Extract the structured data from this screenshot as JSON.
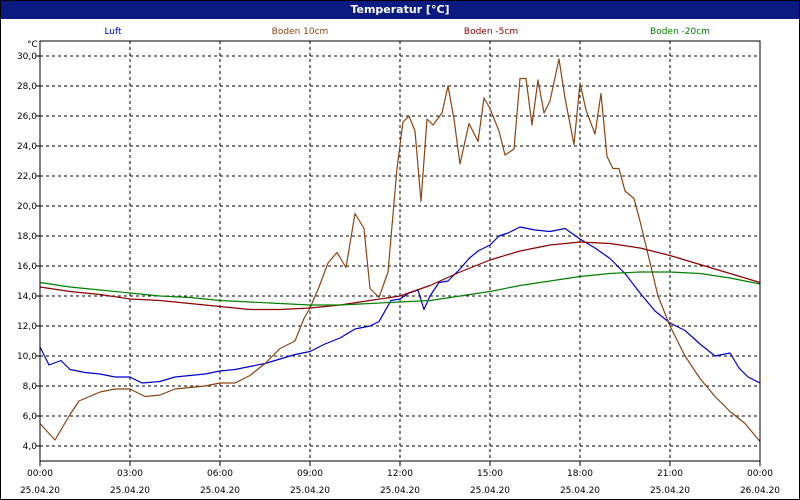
{
  "window": {
    "title": "Temperatur [°C]"
  },
  "chart_data": {
    "type": "line",
    "ylabel": "°C",
    "ylim": [
      3,
      31
    ],
    "xlim": [
      0,
      24
    ],
    "grid": true,
    "legend_position": "top",
    "y_ticks": [
      "4,0",
      "6,0",
      "8,0",
      "10,0",
      "12,0",
      "14,0",
      "16,0",
      "18,0",
      "20,0",
      "22,0",
      "24,0",
      "26,0",
      "28,0",
      "30,0"
    ],
    "x_ticks": [
      {
        "time": "00:00",
        "date": "25.04.20"
      },
      {
        "time": "03:00",
        "date": "25.04.20"
      },
      {
        "time": "06:00",
        "date": "25.04.20"
      },
      {
        "time": "09:00",
        "date": "25.04.20"
      },
      {
        "time": "12:00",
        "date": "25.04.20"
      },
      {
        "time": "15:00",
        "date": "25.04.20"
      },
      {
        "time": "18:00",
        "date": "25.04.20"
      },
      {
        "time": "21:00",
        "date": "25.04.20"
      },
      {
        "time": "00:00",
        "date": "26.04.20"
      }
    ],
    "series": [
      {
        "name": "Luft",
        "color": "#0000cc",
        "points": [
          [
            0,
            10.6
          ],
          [
            0.3,
            9.4
          ],
          [
            0.7,
            9.7
          ],
          [
            1.0,
            9.1
          ],
          [
            1.5,
            8.9
          ],
          [
            2.0,
            8.8
          ],
          [
            2.5,
            8.6
          ],
          [
            3.0,
            8.6
          ],
          [
            3.4,
            8.2
          ],
          [
            4.0,
            8.3
          ],
          [
            4.5,
            8.6
          ],
          [
            5.0,
            8.7
          ],
          [
            5.5,
            8.8
          ],
          [
            6.0,
            9.0
          ],
          [
            6.5,
            9.1
          ],
          [
            7.0,
            9.3
          ],
          [
            7.5,
            9.5
          ],
          [
            8.0,
            9.8
          ],
          [
            8.5,
            10.1
          ],
          [
            9.0,
            10.3
          ],
          [
            9.5,
            10.8
          ],
          [
            10.0,
            11.2
          ],
          [
            10.5,
            11.8
          ],
          [
            11.0,
            12.0
          ],
          [
            11.3,
            12.3
          ],
          [
            11.7,
            13.7
          ],
          [
            12.0,
            13.8
          ],
          [
            12.3,
            14.2
          ],
          [
            12.6,
            14.4
          ],
          [
            12.8,
            13.1
          ],
          [
            13.0,
            14.0
          ],
          [
            13.3,
            14.9
          ],
          [
            13.6,
            15.0
          ],
          [
            14.0,
            15.8
          ],
          [
            14.3,
            16.5
          ],
          [
            14.6,
            17.0
          ],
          [
            15.0,
            17.4
          ],
          [
            15.3,
            18.0
          ],
          [
            15.6,
            18.2
          ],
          [
            16.0,
            18.6
          ],
          [
            16.5,
            18.4
          ],
          [
            17.0,
            18.3
          ],
          [
            17.5,
            18.5
          ],
          [
            18.0,
            17.8
          ],
          [
            18.5,
            17.2
          ],
          [
            19.0,
            16.5
          ],
          [
            19.5,
            15.5
          ],
          [
            20.0,
            14.2
          ],
          [
            20.5,
            13.0
          ],
          [
            21.0,
            12.2
          ],
          [
            21.5,
            11.7
          ],
          [
            22.0,
            10.8
          ],
          [
            22.5,
            10.0
          ],
          [
            23.0,
            10.2
          ],
          [
            23.3,
            9.2
          ],
          [
            23.6,
            8.6
          ],
          [
            24.0,
            8.2
          ]
        ]
      },
      {
        "name": "Boden 10cm",
        "color": "#8b4513",
        "points": [
          [
            0,
            5.5
          ],
          [
            0.5,
            4.4
          ],
          [
            1.0,
            6.1
          ],
          [
            1.3,
            7.0
          ],
          [
            2.0,
            7.6
          ],
          [
            2.5,
            7.8
          ],
          [
            3.0,
            7.8
          ],
          [
            3.5,
            7.3
          ],
          [
            4.0,
            7.4
          ],
          [
            4.5,
            7.8
          ],
          [
            5.0,
            7.9
          ],
          [
            5.5,
            8.0
          ],
          [
            6.0,
            8.2
          ],
          [
            6.5,
            8.2
          ],
          [
            7.0,
            8.7
          ],
          [
            7.5,
            9.5
          ],
          [
            8.0,
            10.5
          ],
          [
            8.5,
            11.0
          ],
          [
            8.8,
            12.5
          ],
          [
            9.0,
            13.2
          ],
          [
            9.3,
            14.6
          ],
          [
            9.6,
            16.2
          ],
          [
            9.9,
            16.9
          ],
          [
            10.2,
            15.9
          ],
          [
            10.5,
            19.5
          ],
          [
            10.8,
            18.5
          ],
          [
            11.0,
            14.5
          ],
          [
            11.3,
            13.9
          ],
          [
            11.6,
            15.6
          ],
          [
            11.9,
            22.5
          ],
          [
            12.1,
            25.6
          ],
          [
            12.3,
            26.0
          ],
          [
            12.5,
            25.0
          ],
          [
            12.7,
            20.3
          ],
          [
            12.9,
            25.8
          ],
          [
            13.1,
            25.4
          ],
          [
            13.4,
            26.2
          ],
          [
            13.6,
            28.0
          ],
          [
            13.8,
            25.8
          ],
          [
            14.0,
            22.8
          ],
          [
            14.3,
            25.5
          ],
          [
            14.6,
            24.3
          ],
          [
            14.8,
            27.2
          ],
          [
            15.0,
            26.5
          ],
          [
            15.3,
            25.0
          ],
          [
            15.5,
            23.4
          ],
          [
            15.8,
            23.8
          ],
          [
            16.0,
            28.5
          ],
          [
            16.2,
            28.5
          ],
          [
            16.4,
            25.4
          ],
          [
            16.6,
            28.4
          ],
          [
            16.8,
            26.2
          ],
          [
            17.0,
            27.0
          ],
          [
            17.3,
            29.8
          ],
          [
            17.5,
            27.2
          ],
          [
            17.8,
            24.1
          ],
          [
            18.0,
            28.2
          ],
          [
            18.2,
            26.4
          ],
          [
            18.5,
            24.8
          ],
          [
            18.7,
            27.5
          ],
          [
            18.9,
            23.3
          ],
          [
            19.1,
            22.5
          ],
          [
            19.3,
            22.5
          ],
          [
            19.5,
            21.0
          ],
          [
            19.8,
            20.5
          ],
          [
            20.0,
            19.0
          ],
          [
            20.3,
            16.5
          ],
          [
            20.6,
            14.0
          ],
          [
            21.0,
            12.0
          ],
          [
            21.5,
            10.0
          ],
          [
            22.0,
            8.5
          ],
          [
            22.5,
            7.3
          ],
          [
            23.0,
            6.3
          ],
          [
            23.5,
            5.5
          ],
          [
            24.0,
            4.3
          ]
        ]
      },
      {
        "name": "Boden -5cm",
        "color": "#8b0000",
        "points": [
          [
            0,
            14.6
          ],
          [
            1.0,
            14.3
          ],
          [
            2.0,
            14.1
          ],
          [
            3.0,
            13.8
          ],
          [
            4.0,
            13.7
          ],
          [
            5.0,
            13.5
          ],
          [
            6.0,
            13.3
          ],
          [
            7.0,
            13.1
          ],
          [
            8.0,
            13.1
          ],
          [
            9.0,
            13.2
          ],
          [
            10.0,
            13.4
          ],
          [
            11.0,
            13.7
          ],
          [
            12.0,
            14.0
          ],
          [
            13.0,
            14.7
          ],
          [
            14.0,
            15.6
          ],
          [
            15.0,
            16.4
          ],
          [
            16.0,
            17.0
          ],
          [
            17.0,
            17.4
          ],
          [
            18.0,
            17.6
          ],
          [
            19.0,
            17.5
          ],
          [
            20.0,
            17.2
          ],
          [
            21.0,
            16.7
          ],
          [
            22.0,
            16.1
          ],
          [
            23.0,
            15.5
          ],
          [
            24.0,
            14.9
          ]
        ]
      },
      {
        "name": "Boden -20cm",
        "color": "#008000",
        "points": [
          [
            0,
            14.9
          ],
          [
            1.0,
            14.6
          ],
          [
            2.0,
            14.4
          ],
          [
            3.0,
            14.2
          ],
          [
            4.0,
            14.0
          ],
          [
            5.0,
            13.9
          ],
          [
            6.0,
            13.7
          ],
          [
            7.0,
            13.6
          ],
          [
            8.0,
            13.5
          ],
          [
            9.0,
            13.4
          ],
          [
            10.0,
            13.4
          ],
          [
            11.0,
            13.5
          ],
          [
            12.0,
            13.6
          ],
          [
            13.0,
            13.7
          ],
          [
            14.0,
            14.0
          ],
          [
            15.0,
            14.3
          ],
          [
            16.0,
            14.7
          ],
          [
            17.0,
            15.0
          ],
          [
            18.0,
            15.3
          ],
          [
            19.0,
            15.5
          ],
          [
            20.0,
            15.6
          ],
          [
            21.0,
            15.6
          ],
          [
            22.0,
            15.5
          ],
          [
            23.0,
            15.2
          ],
          [
            24.0,
            14.8
          ]
        ]
      }
    ]
  }
}
